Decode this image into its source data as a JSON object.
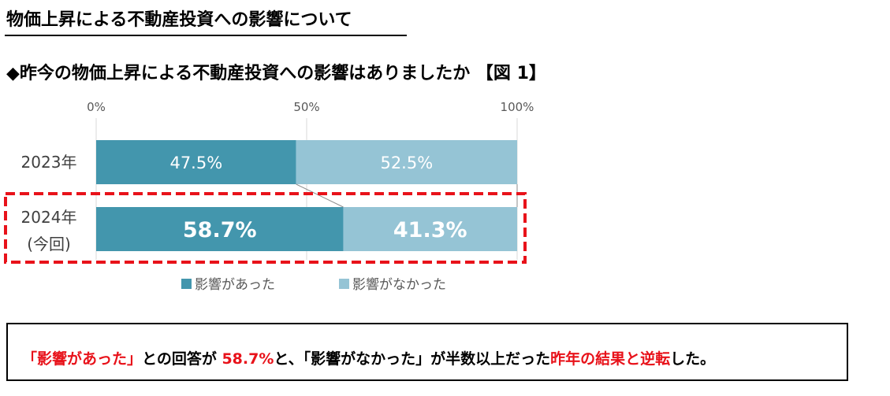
{
  "title": "物価上昇による不動産投資への影響について",
  "subtitle": "◆昨今の物価上昇による不動産投資への影響はありましたか 【図 1】",
  "chart_data": {
    "type": "bar",
    "orientation": "horizontal",
    "stacked": true,
    "percent_scale": true,
    "categories": [
      [
        "2023年"
      ],
      [
        "2024年",
        "(今回)"
      ]
    ],
    "series": [
      {
        "name": "影響があった",
        "color": "#4396ad",
        "values": [
          47.5,
          58.7
        ],
        "labels": [
          "47.5%",
          "58.7%"
        ]
      },
      {
        "name": "影響がなかった",
        "color": "#95c4d5",
        "values": [
          52.5,
          41.3
        ],
        "labels": [
          "52.5%",
          "41.3%"
        ]
      }
    ],
    "xticks": [
      0,
      50,
      100
    ],
    "xtick_labels": [
      "0%",
      "50%",
      "100%"
    ],
    "xlim": [
      0,
      100
    ],
    "legend_position": "bottom",
    "highlight_category_index": 1,
    "highlight_color": "#e8121a"
  },
  "callout": {
    "parts": [
      {
        "text": "「影響があった」",
        "emphasis": true
      },
      {
        "text": "との回答が ",
        "emphasis": false
      },
      {
        "text": "58.7%",
        "emphasis": true
      },
      {
        "text": "と、「影響がなかった」が半数以上だった",
        "emphasis": false
      },
      {
        "text": "昨年の結果と逆転",
        "emphasis": true
      },
      {
        "text": "した。",
        "emphasis": false
      }
    ]
  }
}
